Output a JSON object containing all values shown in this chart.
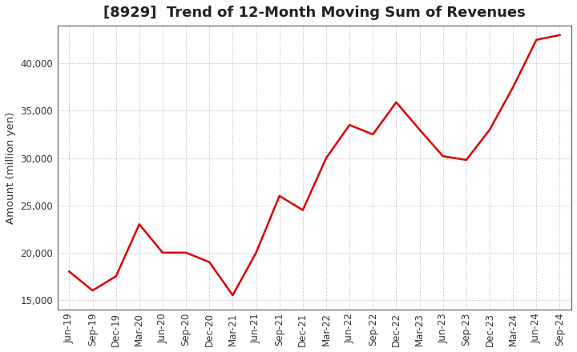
{
  "title": "[8929]  Trend of 12-Month Moving Sum of Revenues",
  "ylabel": "Amount (million yen)",
  "line_color": "#DD0000",
  "background_color": "#FFFFFF",
  "grid_color": "#AAAAAA",
  "x_labels": [
    "Jun-19",
    "Sep-19",
    "Dec-19",
    "Mar-20",
    "Jun-20",
    "Sep-20",
    "Dec-20",
    "Mar-21",
    "Jun-21",
    "Sep-21",
    "Dec-21",
    "Mar-22",
    "Jun-22",
    "Sep-22",
    "Dec-22",
    "Mar-23",
    "Jun-23",
    "Sep-23",
    "Dec-23",
    "Mar-24",
    "Jun-24",
    "Sep-24"
  ],
  "values": [
    18000,
    16000,
    17500,
    23000,
    20000,
    20000,
    19000,
    15500,
    20000,
    26000,
    24500,
    30000,
    33500,
    32500,
    35900,
    33000,
    30200,
    29800,
    33000,
    37500,
    42500,
    43000
  ],
  "ylim": [
    14000,
    44000
  ],
  "yticks": [
    15000,
    20000,
    25000,
    30000,
    35000,
    40000
  ],
  "line_width": 1.8,
  "title_fontsize": 13,
  "tick_fontsize": 8.5,
  "ylabel_fontsize": 9.5
}
